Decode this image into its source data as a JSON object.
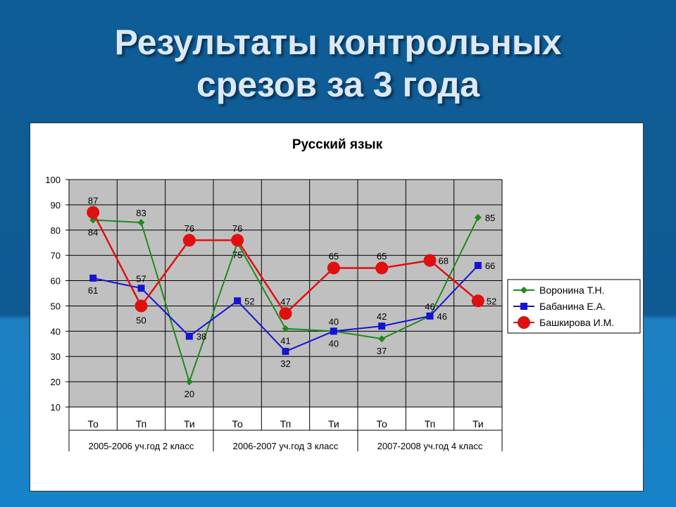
{
  "slide": {
    "title_line1": "Результаты контрольных",
    "title_line2": "срезов за 3 года"
  },
  "chart_data": {
    "type": "line",
    "title": "Русский язык",
    "categories": [
      "То",
      "Тп",
      "Ти",
      "То",
      "Тп",
      "Ти",
      "То",
      "Тп",
      "Ти"
    ],
    "groups": [
      {
        "label": "2005-2006 уч.год 2 класс",
        "span": 3
      },
      {
        "label": "2006-2007 уч.год 3 класс",
        "span": 3
      },
      {
        "label": "2007-2008 уч.год 4 класс",
        "span": 3
      }
    ],
    "ylim": [
      10,
      100
    ],
    "yticks": [
      10,
      20,
      30,
      40,
      50,
      60,
      70,
      80,
      90,
      100
    ],
    "grid": true,
    "legend": "right",
    "series": [
      {
        "name": "Воронина Т.Н.",
        "color": "#1e8a1e",
        "marker": "diamond",
        "values": [
          84,
          83,
          20,
          75,
          41,
          40,
          37,
          46,
          85
        ]
      },
      {
        "name": "Бабанина Е.А.",
        "color": "#1414d2",
        "marker": "square",
        "values": [
          61,
          57,
          38,
          52,
          32,
          40,
          42,
          46,
          66
        ]
      },
      {
        "name": "Башкирова И.М.",
        "color": "#e01010",
        "marker": "circle",
        "values": [
          87,
          50,
          76,
          76,
          47,
          65,
          65,
          68,
          52
        ]
      }
    ]
  }
}
